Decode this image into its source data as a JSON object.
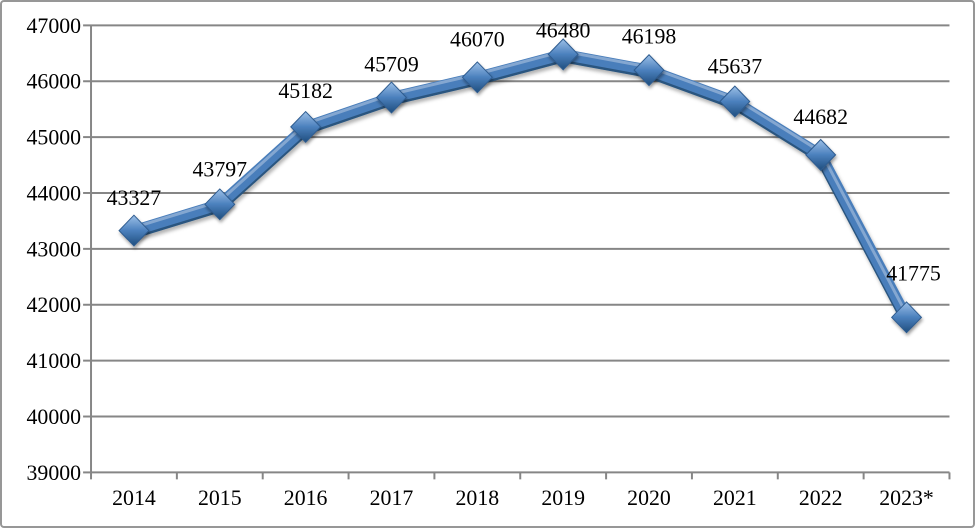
{
  "frame": {
    "background": "#ffffff",
    "border_color": "#979797"
  },
  "chart_data": {
    "type": "line",
    "title": "",
    "xlabel": "",
    "ylabel": "",
    "legend_position": "none",
    "grid": true,
    "marker": "diamond",
    "categories": [
      "2014",
      "2015",
      "2016",
      "2017",
      "2018",
      "2019",
      "2020",
      "2021",
      "2022",
      "2023*"
    ],
    "series": [
      {
        "name": "",
        "values": [
          43327,
          43797,
          45182,
          45709,
          46070,
          46480,
          46198,
          45637,
          44682,
          41775
        ]
      }
    ],
    "data_labels": [
      "43327",
      "43797",
      "45182",
      "45709",
      "46070",
      "46480",
      "46198",
      "45637",
      "44682",
      "41775"
    ],
    "ylim": [
      39000,
      47000
    ],
    "ytick_step": 1000,
    "yticks": [
      39000,
      40000,
      41000,
      42000,
      43000,
      44000,
      45000,
      46000,
      47000
    ],
    "label_dy": [
      -26,
      -28,
      -29,
      -26,
      -31,
      -17,
      -27,
      -28,
      -31,
      -37
    ],
    "label_dx": [
      0,
      0,
      0,
      0,
      0,
      0,
      0,
      0,
      0,
      7
    ],
    "colors": {
      "line": "#4A7EBB",
      "line_dark": "#29557F",
      "line_highlight": "rgba(255,255,255,0.32)",
      "marker_top": "#9CC0E7",
      "marker_mid": "#4B80BD",
      "marker_bottom": "#1F4E7E",
      "marker_edge": "#2E5B8F",
      "grid": "#868686",
      "axis": "#868686",
      "text": "#000000"
    }
  }
}
